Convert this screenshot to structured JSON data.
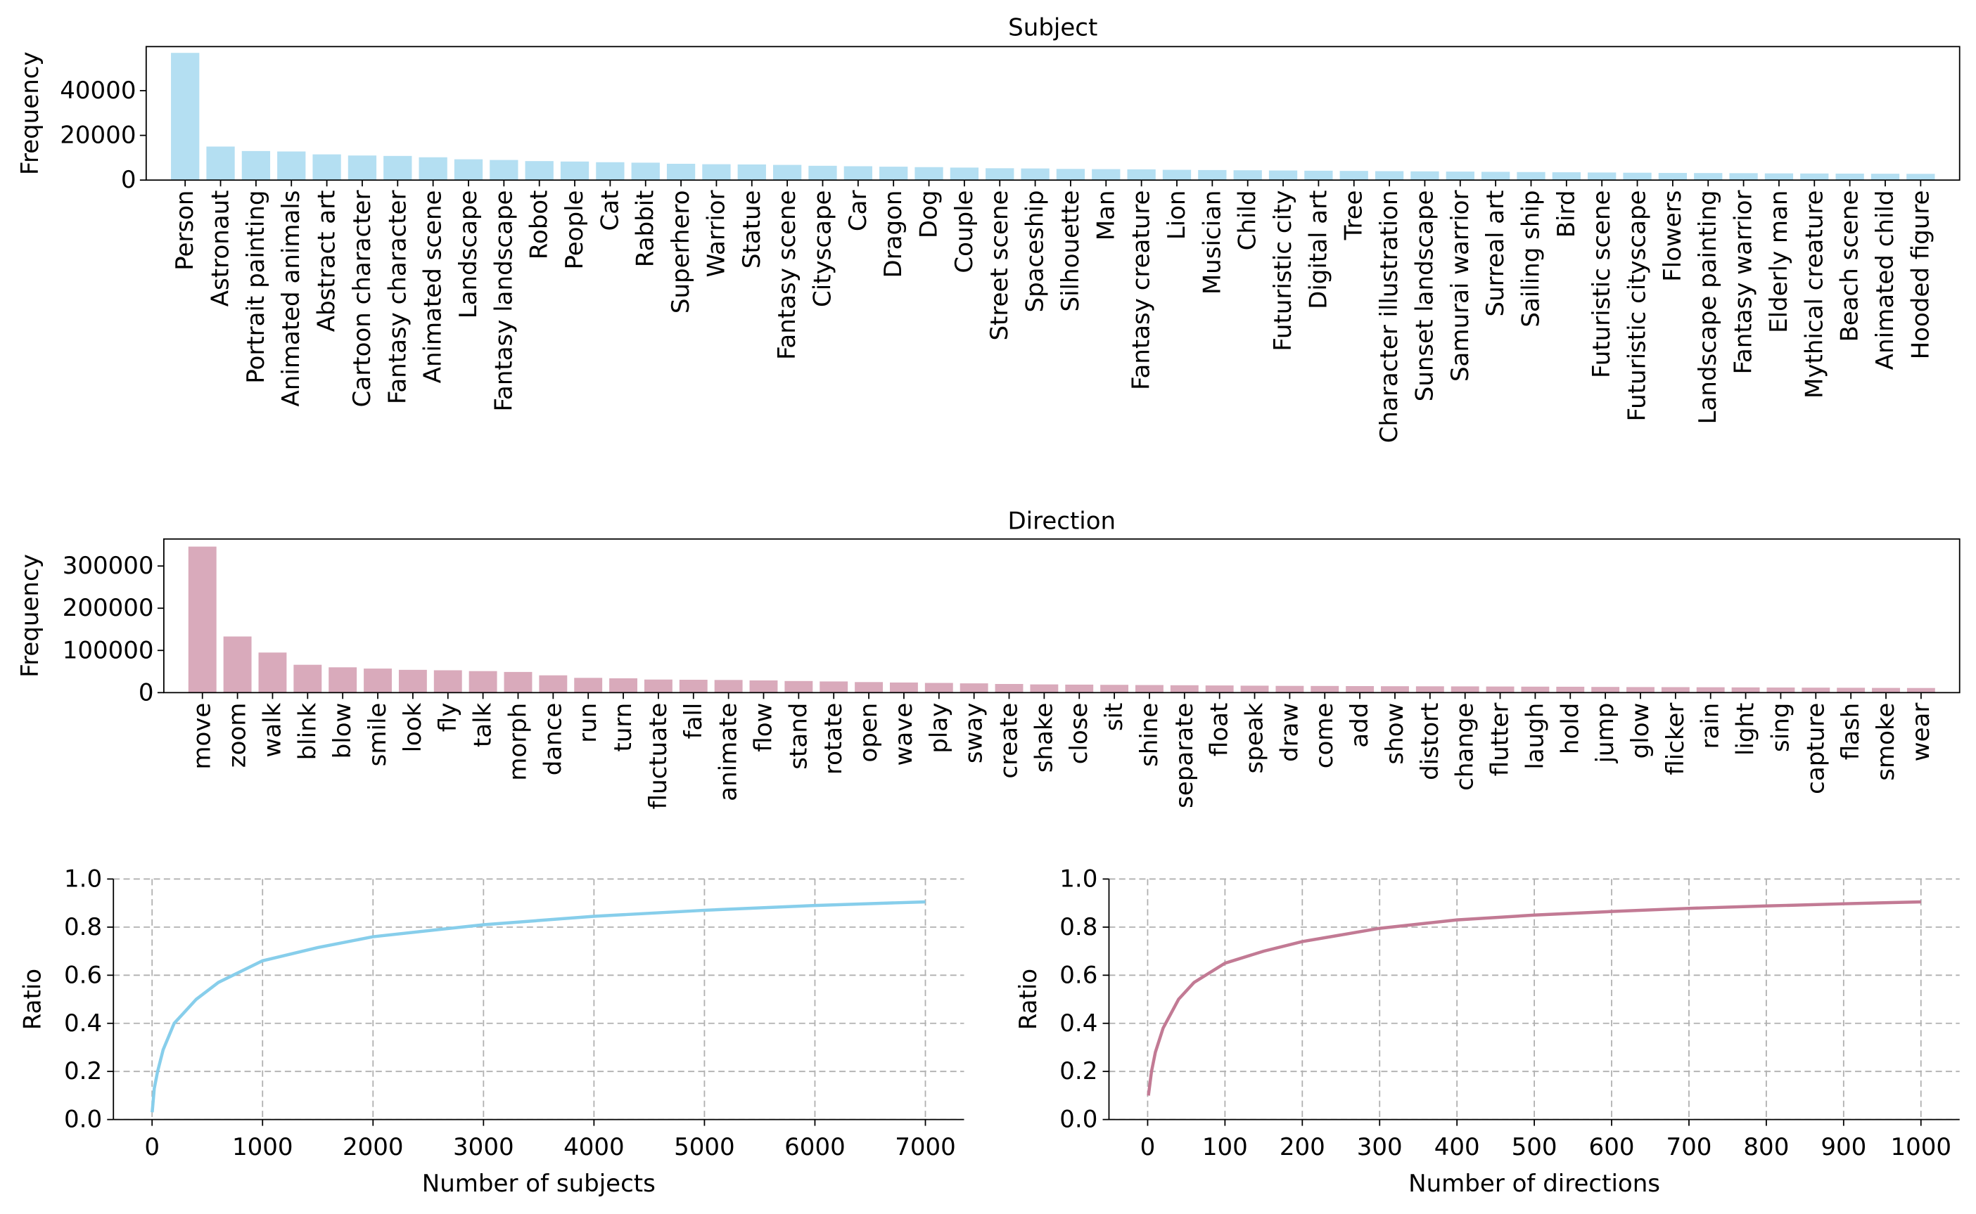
{
  "chart_data": [
    {
      "type": "bar",
      "title": "Subject",
      "ylabel": "Frequency",
      "categories": [
        "Person",
        "Astronaut",
        "Portrait painting",
        "Animated animals",
        "Abstract art",
        "Cartoon character",
        "Fantasy character",
        "Animated scene",
        "Landscape",
        "Fantasy landscape",
        "Robot",
        "People",
        "Cat",
        "Rabbit",
        "Superhero",
        "Warrior",
        "Statue",
        "Fantasy scene",
        "Cityscape",
        "Car",
        "Dragon",
        "Dog",
        "Couple",
        "Street scene",
        "Spaceship",
        "Silhouette",
        "Man",
        "Fantasy creature",
        "Lion",
        "Musician",
        "Child",
        "Futuristic city",
        "Digital art",
        "Tree",
        "Character illustration",
        "Sunset landscape",
        "Samurai warrior",
        "Surreal art",
        "Sailing ship",
        "Bird",
        "Futuristic scene",
        "Futuristic cityscape",
        "Flowers",
        "Landscape painting",
        "Fantasy warrior",
        "Elderly man",
        "Mythical creature",
        "Beach scene",
        "Animated child",
        "Hooded figure"
      ],
      "values": [
        56900,
        15000,
        13000,
        12800,
        11500,
        11000,
        10800,
        10200,
        9300,
        9000,
        8500,
        8300,
        8000,
        7800,
        7300,
        7100,
        7000,
        6800,
        6400,
        6200,
        6000,
        5800,
        5600,
        5300,
        5200,
        5000,
        4900,
        4800,
        4600,
        4500,
        4400,
        4300,
        4200,
        4100,
        4000,
        3900,
        3800,
        3700,
        3600,
        3500,
        3400,
        3300,
        3200,
        3150,
        3100,
        3000,
        2950,
        2900,
        2850,
        2800
      ],
      "color": "#b4dff2",
      "ylim": [
        0,
        59700
      ],
      "yticks": [
        0,
        20000,
        40000
      ],
      "grid": false
    },
    {
      "type": "bar",
      "title": "Direction",
      "ylabel": "Frequency",
      "categories": [
        "move",
        "zoom",
        "walk",
        "blink",
        "blow",
        "smile",
        "look",
        "fly",
        "talk",
        "morph",
        "dance",
        "run",
        "turn",
        "fluctuate",
        "fall",
        "animate",
        "flow",
        "stand",
        "rotate",
        "open",
        "wave",
        "play",
        "sway",
        "create",
        "shake",
        "close",
        "sit",
        "shine",
        "separate",
        "float",
        "speak",
        "draw",
        "come",
        "add",
        "show",
        "distort",
        "change",
        "flutter",
        "laugh",
        "hold",
        "jump",
        "glow",
        "flicker",
        "rain",
        "light",
        "sing",
        "capture",
        "flash",
        "smoke",
        "wear"
      ],
      "values": [
        346000,
        133000,
        95000,
        66000,
        60000,
        57000,
        54000,
        53000,
        51000,
        49000,
        41000,
        35000,
        34000,
        31000,
        30500,
        30000,
        29000,
        27500,
        26500,
        25000,
        24000,
        23000,
        22000,
        20500,
        19500,
        19000,
        18500,
        18000,
        17500,
        17000,
        16500,
        16000,
        15800,
        15500,
        15200,
        15000,
        14800,
        14500,
        14200,
        14000,
        13500,
        13200,
        13000,
        12700,
        12400,
        12100,
        11800,
        11500,
        11200,
        11000
      ],
      "color": "#d9aabb",
      "ylim": [
        0,
        364000
      ],
      "yticks": [
        0,
        100000,
        200000,
        300000
      ],
      "grid": false
    },
    {
      "type": "line",
      "xlabel": "Number of subjects",
      "ylabel": "Ratio",
      "x": [
        1,
        20,
        50,
        100,
        200,
        400,
        600,
        1000,
        1500,
        2000,
        3000,
        4000,
        5000,
        6000,
        7000
      ],
      "values": [
        0.03,
        0.13,
        0.2,
        0.29,
        0.4,
        0.5,
        0.57,
        0.66,
        0.715,
        0.76,
        0.81,
        0.845,
        0.87,
        0.89,
        0.905
      ],
      "color": "#87ceeb",
      "xlim": [
        -350,
        7350
      ],
      "ylim": [
        0,
        1
      ],
      "xticks": [
        0,
        1000,
        2000,
        3000,
        4000,
        5000,
        6000,
        7000
      ],
      "yticks": [
        {
          "value": 0,
          "label": "0.0"
        },
        0.2,
        0.4,
        0.6,
        0.8,
        {
          "value": 1,
          "label": "1.0"
        }
      ],
      "grid": true
    },
    {
      "type": "line",
      "xlabel": "Number of directions",
      "ylabel": "Ratio",
      "x": [
        1,
        5,
        10,
        20,
        40,
        60,
        100,
        150,
        200,
        300,
        400,
        500,
        600,
        700,
        800,
        900,
        1000
      ],
      "values": [
        0.1,
        0.2,
        0.28,
        0.38,
        0.5,
        0.57,
        0.65,
        0.7,
        0.74,
        0.795,
        0.83,
        0.85,
        0.865,
        0.878,
        0.888,
        0.897,
        0.905
      ],
      "color": "#c27a94",
      "xlim": [
        -50,
        1050
      ],
      "ylim": [
        0,
        1
      ],
      "xticks": [
        0,
        100,
        200,
        300,
        400,
        500,
        600,
        700,
        800,
        900,
        1000
      ],
      "yticks": [
        {
          "value": 0,
          "label": "0.0"
        },
        0.2,
        0.4,
        0.6,
        0.8,
        {
          "value": 1,
          "label": "1.0"
        }
      ],
      "grid": true
    }
  ]
}
